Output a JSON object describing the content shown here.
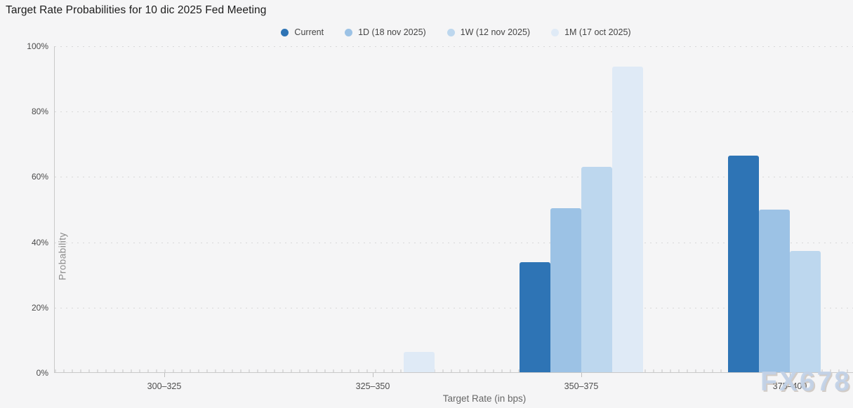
{
  "title": "Target Rate Probabilities for 10 dic 2025 Fed Meeting",
  "watermark": "FX678",
  "axes": {
    "x_label": "Target Rate (in bps)",
    "y_label": "Probability"
  },
  "chart_data": {
    "type": "bar",
    "title": "Target Rate Probabilities for 10 dic 2025 Fed Meeting",
    "xlabel": "Target Rate (in bps)",
    "ylabel": "Probability",
    "ylim": [
      0,
      100
    ],
    "y_ticks": [
      "0%",
      "20%",
      "40%",
      "60%",
      "80%",
      "100%"
    ],
    "grid": "horizontal-dotted",
    "legend_position": "top-center",
    "categories": [
      "300–325",
      "325–350",
      "350–375",
      "375–400"
    ],
    "series": [
      {
        "name": "Current",
        "color": "#2e74b5",
        "values": [
          0,
          0,
          33.7,
          66.4
        ]
      },
      {
        "name": "1D (18 nov 2025)",
        "color": "#9cc2e5",
        "values": [
          0,
          0,
          50.2,
          49.9
        ]
      },
      {
        "name": "1W (12 nov 2025)",
        "color": "#bdd7ee",
        "values": [
          0,
          0,
          62.8,
          37.2
        ]
      },
      {
        "name": "1M (17 oct 2025)",
        "color": "#dfeaf6",
        "values": [
          0,
          6.2,
          93.6,
          0
        ]
      }
    ]
  }
}
